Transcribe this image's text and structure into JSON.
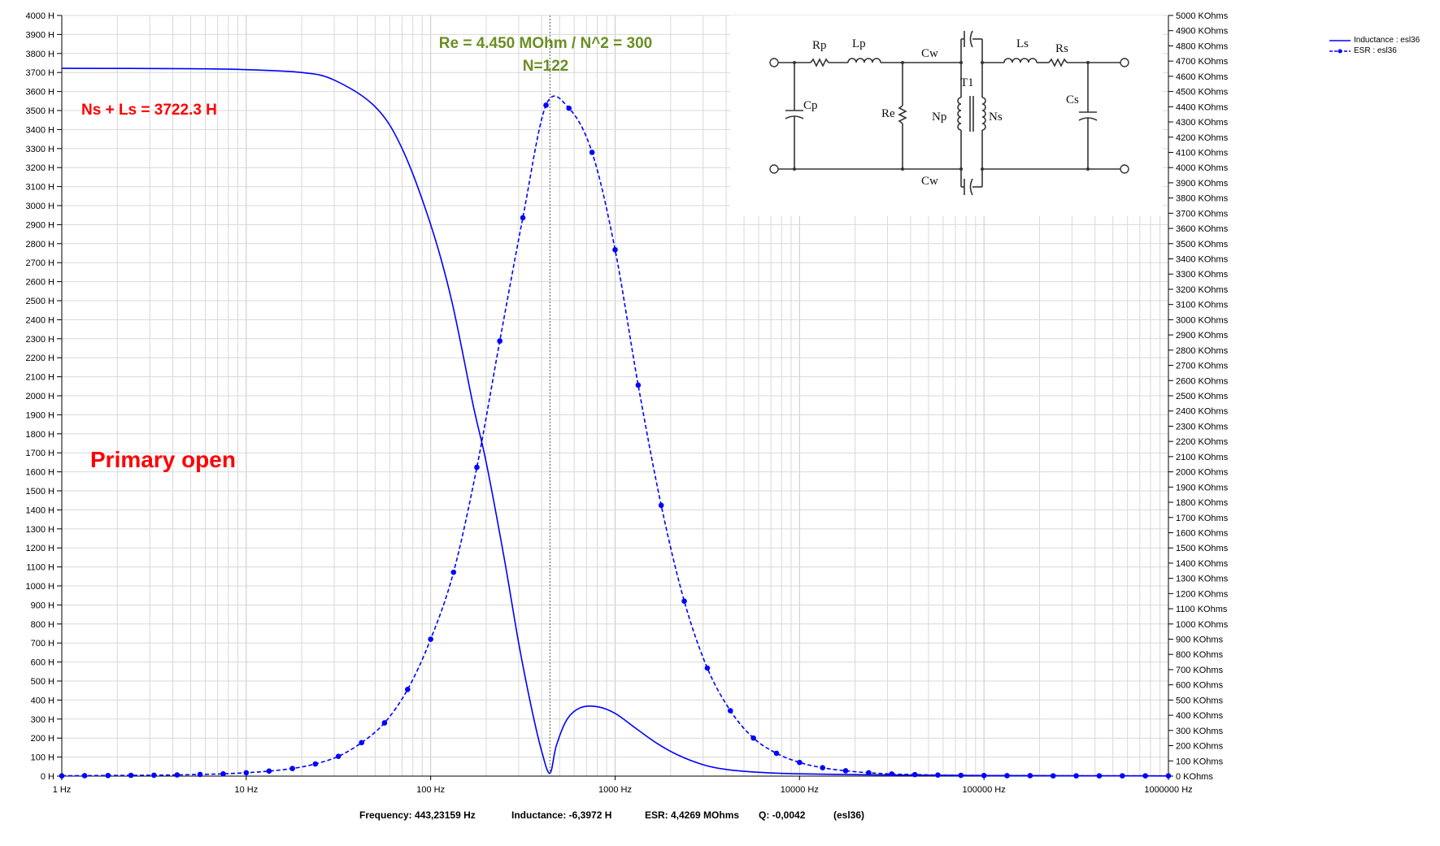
{
  "chart_data": {
    "type": "line",
    "x_scale": "log",
    "xlim": [
      1,
      1000000
    ],
    "y_left_lim": [
      0,
      4000
    ],
    "y_right_lim": [
      0,
      5000
    ],
    "grid": true,
    "legend_position": "top-right",
    "x_ticks": [
      "1 Hz",
      "10 Hz",
      "100 Hz",
      "1000 Hz",
      "10000 Hz",
      "100000 Hz",
      "1000000 Hz"
    ],
    "y_left_ticks": [
      "4000 H",
      "3900 H",
      "3800 H",
      "3700 H",
      "3600 H",
      "3500 H",
      "3400 H",
      "3300 H",
      "3200 H",
      "3100 H",
      "3000 H",
      "2900 H",
      "2800 H",
      "2700 H",
      "2600 H",
      "2500 H",
      "2400 H",
      "2300 H",
      "2200 H",
      "2100 H",
      "2000 H",
      "1900 H",
      "1800 H",
      "1700 H",
      "1600 H",
      "1500 H",
      "1400 H",
      "1300 H",
      "1200 H",
      "1100 H",
      "1000 H",
      "900 H",
      "800 H",
      "700 H",
      "600 H",
      "500 H",
      "400 H",
      "300 H",
      "200 H",
      "100 H",
      "0 H"
    ],
    "y_right_ticks": [
      "5000 KOhms",
      "4900 KOhms",
      "4800 KOhms",
      "4700 KOhms",
      "4600 KOhms",
      "4500 KOhms",
      "4400 KOhms",
      "4300 KOhms",
      "4200 KOhms",
      "4100 KOhms",
      "4000 KOhms",
      "3900 KOhms",
      "3800 KOhms",
      "3700 KOhms",
      "3600 KOhms",
      "3500 KOhms",
      "3400 KOhms",
      "3300 KOhms",
      "3200 KOhms",
      "3100 KOhms",
      "3000 KOhms",
      "2900 KOhms",
      "2800 KOhms",
      "2700 KOhms",
      "2600 KOhms",
      "2500 KOhms",
      "2400 KOhms",
      "2300 KOhms",
      "2200 KOhms",
      "2100 KOhms",
      "2000 KOhms",
      "1900 KOhms",
      "1800 KOhms",
      "1700 KOhms",
      "1600 KOhms",
      "1500 KOhms",
      "1400 KOhms",
      "1300 KOhms",
      "1200 KOhms",
      "1100 KOhms",
      "1000 KOhms",
      "900 KOhms",
      "800 KOhms",
      "700 KOhms",
      "600 KOhms",
      "500 KOhms",
      "400 KOhms",
      "300 KOhms",
      "200 KOhms",
      "100 KOhms",
      "0 KOhms"
    ],
    "series": [
      {
        "name": "Inductance : esl36",
        "axis": "left",
        "color": "#0000ff",
        "style": "solid",
        "x": [
          1,
          5,
          10,
          20,
          30,
          50,
          70,
          100,
          130,
          170,
          200,
          250,
          300,
          350,
          400,
          443,
          480,
          550,
          650,
          800,
          1000,
          1300,
          1700,
          2200,
          3000,
          4000,
          6000,
          10000,
          30000,
          100000,
          1000000
        ],
        "y": [
          3722,
          3720,
          3715,
          3700,
          3660,
          3520,
          3300,
          2900,
          2500,
          1950,
          1650,
          1150,
          700,
          370,
          130,
          15,
          160,
          300,
          360,
          365,
          330,
          250,
          170,
          110,
          60,
          35,
          20,
          12,
          6,
          3,
          1
        ]
      },
      {
        "name": "ESR : esl36",
        "axis": "right",
        "color": "#0000ff",
        "style": "dashed",
        "markers": true,
        "x": [
          1,
          1.33,
          1.78,
          2.37,
          3.16,
          4.22,
          5.62,
          7.5,
          10,
          13.3,
          17.8,
          23.7,
          31.6,
          42.2,
          56.2,
          75,
          100,
          133,
          178,
          237,
          316,
          422,
          562,
          750,
          1000,
          1334,
          1778,
          2371,
          3162,
          4217,
          5623,
          7499,
          10000,
          13335,
          17783,
          23714,
          31623,
          42170,
          56234,
          74989,
          100000,
          133352,
          177828,
          237137,
          316228,
          421697,
          562341,
          749894,
          1000000
        ],
        "y": [
          2,
          3,
          4,
          5,
          6,
          8,
          11,
          15,
          22,
          33,
          50,
          80,
          130,
          220,
          350,
          570,
          900,
          1340,
          2030,
          2860,
          3670,
          4410,
          4390,
          4100,
          3460,
          2570,
          1780,
          1150,
          710,
          430,
          250,
          150,
          90,
          55,
          35,
          22,
          14,
          10,
          7,
          5,
          4,
          3,
          3,
          2,
          2,
          2,
          2,
          2,
          2
        ]
      }
    ],
    "cursor_x": 443.23159,
    "annotations": {
      "re_line": "Re = 4.450 MOhm / N^2 = 300",
      "n_line": "N=122",
      "ns_ls": "Ns + Ls = 3722.3 H",
      "mode": "Primary open"
    }
  },
  "schematic": {
    "labels": [
      "Rp",
      "Lp",
      "Cw",
      "Ls",
      "Rs",
      "Cp",
      "Re",
      "T1",
      "Np",
      "Ns",
      "Cs",
      "Cw"
    ]
  },
  "status_bar": {
    "frequency": "Frequency: 443,23159 Hz",
    "inductance": "Inductance: -6,3972 H",
    "esr": "ESR: 4,4269 MOhms",
    "q": "Q: -0,0042",
    "name": "(esl36)"
  },
  "legend": {
    "items": [
      "Inductance : esl36",
      "ESR : esl36"
    ]
  },
  "colors": {
    "curve": "#0000ff",
    "annotation_green": "#6b8e23",
    "annotation_red": "#ff0000",
    "grid": "#d8d8d8"
  }
}
